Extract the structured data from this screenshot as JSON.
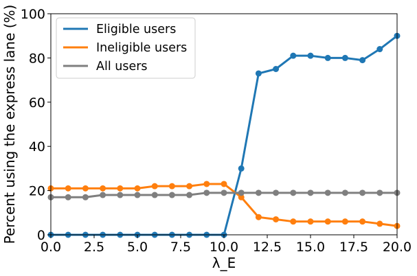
{
  "chart_data": {
    "type": "line",
    "xlabel": "λ_E",
    "ylabel": "Percent using the express lane (%)",
    "xlim": [
      0,
      20
    ],
    "ylim": [
      0,
      100
    ],
    "xticks": [
      "0.0",
      "2.5",
      "5.0",
      "7.5",
      "10.0",
      "12.5",
      "15.0",
      "17.5",
      "20.0"
    ],
    "yticks": [
      "0",
      "20",
      "40",
      "60",
      "80",
      "100"
    ],
    "grid": false,
    "legend_position": "top-left",
    "x": [
      0,
      1,
      2,
      3,
      4,
      5,
      6,
      7,
      8,
      9,
      10,
      11,
      12,
      13,
      14,
      15,
      16,
      17,
      18,
      19,
      20
    ],
    "series": [
      {
        "name": "Eligible users",
        "color": "#1f77b4",
        "values": [
          0,
          0,
          0,
          0,
          0,
          0,
          0,
          0,
          0,
          0,
          0,
          30,
          73,
          75,
          81,
          81,
          80,
          80,
          79,
          84,
          90
        ]
      },
      {
        "name": "Ineligible users",
        "color": "#ff7f0e",
        "values": [
          21,
          21,
          21,
          21,
          21,
          21,
          22,
          22,
          22,
          23,
          23,
          17,
          8,
          7,
          6,
          6,
          6,
          6,
          6,
          5,
          4
        ]
      },
      {
        "name": "All users",
        "color": "#7f7f7f",
        "values": [
          17,
          17,
          17,
          18,
          18,
          18,
          18,
          18,
          18,
          19,
          19,
          19,
          19,
          19,
          19,
          19,
          19,
          19,
          19,
          19,
          19
        ]
      }
    ]
  }
}
